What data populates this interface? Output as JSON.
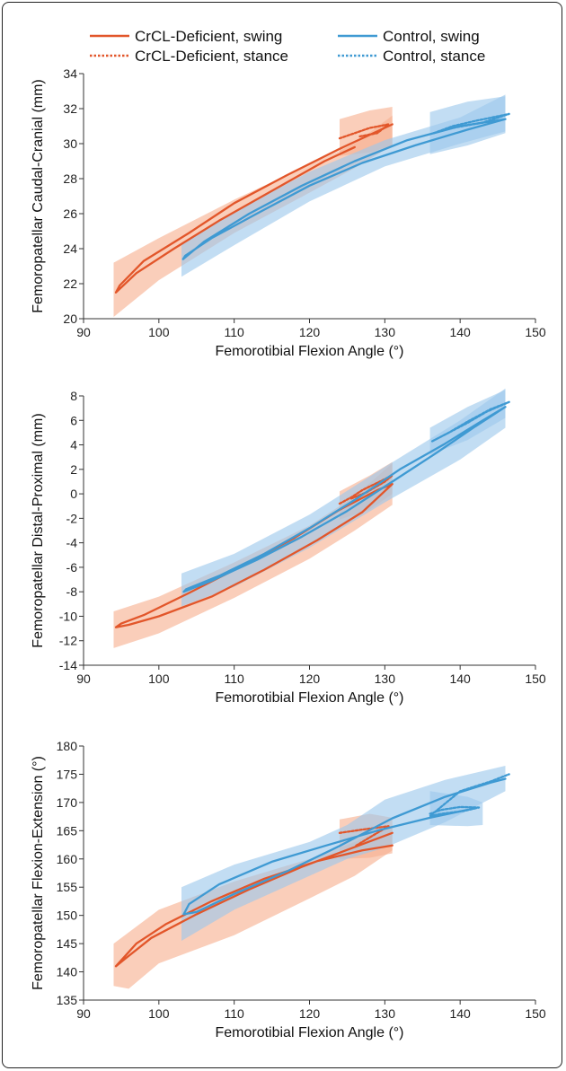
{
  "legend": {
    "items": [
      {
        "label": "CrCL-Deficient, swing",
        "color": "#E2562A",
        "dash": false
      },
      {
        "label": "CrCL-Deficient, stance",
        "color": "#E2562A",
        "dash": true
      },
      {
        "label": "Control, swing",
        "color": "#3F9AD3",
        "dash": false
      },
      {
        "label": "Control, stance",
        "color": "#3F9AD3",
        "dash": true
      }
    ]
  },
  "colors": {
    "crcl": "#E2562A",
    "crcl_band": "#F7B08F",
    "control": "#3F9AD3",
    "control_band": "#9DC8EC"
  },
  "chart_data": [
    {
      "type": "line",
      "title": "",
      "xlabel": "Femorotibial Flexion Angle (°)",
      "ylabel": "Femoropatellar Caudal-Cranial (mm)",
      "xlim": [
        90,
        150
      ],
      "ylim": [
        20,
        34
      ],
      "xticks": [
        90,
        100,
        110,
        120,
        130,
        140,
        150
      ],
      "yticks": [
        20,
        22,
        24,
        26,
        28,
        30,
        32,
        34
      ],
      "series": [
        {
          "name": "CrCL-Deficient, swing",
          "x": [
            126,
            122,
            115,
            108,
            102,
            97,
            94.3,
            94.8,
            98,
            104,
            110,
            117,
            124,
            131
          ],
          "y": [
            29.8,
            29.0,
            27.3,
            25.6,
            24.0,
            22.6,
            21.5,
            21.9,
            23.3,
            24.9,
            26.6,
            28.2,
            29.7,
            31.1
          ]
        },
        {
          "name": "CrCL-Deficient, stance",
          "x": [
            124,
            126,
            128,
            130.5,
            129,
            126.5
          ],
          "y": [
            30.3,
            30.6,
            30.9,
            31.1,
            30.6,
            30.4
          ]
        },
        {
          "name": "Control, swing",
          "x": [
            146,
            140,
            133,
            126,
            119,
            112,
            106,
            103.2,
            103.5,
            107,
            113,
            120,
            127,
            134,
            141,
            146
          ],
          "y": [
            31.4,
            31.0,
            30.2,
            29.0,
            27.6,
            26.0,
            24.4,
            23.4,
            23.6,
            24.6,
            26.0,
            27.6,
            28.9,
            29.9,
            30.8,
            31.4
          ]
        },
        {
          "name": "Control, stance",
          "x": [
            136.5,
            139,
            142,
            146.5,
            143,
            139,
            136.5
          ],
          "y": [
            30.6,
            31.0,
            31.3,
            31.7,
            31.2,
            30.9,
            30.6
          ]
        }
      ]
    },
    {
      "type": "line",
      "title": "",
      "xlabel": "Femorotibial Flexion Angle (°)",
      "ylabel": "Femoropatellar Distal-Proximal (mm)",
      "xlim": [
        90,
        150
      ],
      "ylim": [
        -14,
        8
      ],
      "xticks": [
        90,
        100,
        110,
        120,
        130,
        140,
        150
      ],
      "yticks": [
        -14,
        -12,
        -10,
        -8,
        -6,
        -4,
        -2,
        0,
        2,
        4,
        6,
        8
      ],
      "series": [
        {
          "name": "CrCL-Deficient, swing",
          "x": [
            131,
            127,
            121,
            114,
            107,
            100,
            96,
            94.3,
            95,
            98,
            104,
            111,
            118,
            124,
            129,
            131
          ],
          "y": [
            0.8,
            -1.5,
            -3.8,
            -6.2,
            -8.4,
            -10.0,
            -10.7,
            -10.9,
            -10.6,
            -9.9,
            -8.1,
            -5.9,
            -3.6,
            -1.3,
            0.3,
            0.8
          ]
        },
        {
          "name": "CrCL-Deficient, stance",
          "x": [
            124,
            125.5,
            127,
            129,
            131,
            130,
            127.5,
            125.5
          ],
          "y": [
            -0.8,
            -0.3,
            0.3,
            0.9,
            1.5,
            1.0,
            0.1,
            -0.4
          ]
        },
        {
          "name": "Control, swing",
          "x": [
            146,
            142,
            137,
            131,
            125,
            119,
            113,
            107,
            103.3,
            103.6,
            108,
            114,
            120,
            126,
            132,
            138,
            143,
            146
          ],
          "y": [
            7.1,
            5.5,
            3.4,
            1.0,
            -1.4,
            -3.5,
            -5.4,
            -7.1,
            -8.0,
            -7.8,
            -6.7,
            -4.9,
            -2.8,
            -0.5,
            2.0,
            4.1,
            6.0,
            7.1
          ]
        },
        {
          "name": "Control, stance",
          "x": [
            136.3,
            138.5,
            141,
            143.5,
            146.5,
            144,
            141,
            138.5,
            136.3
          ],
          "y": [
            4.3,
            5.0,
            5.8,
            6.7,
            7.5,
            6.9,
            5.9,
            5.0,
            4.3
          ]
        }
      ]
    },
    {
      "type": "line",
      "title": "",
      "xlabel": "Femorotibial Flexion Angle (°)",
      "ylabel": "Femoropatellar Flexion-Extension (°)",
      "xlim": [
        90,
        150
      ],
      "ylim": [
        135,
        180
      ],
      "xticks": [
        90,
        100,
        110,
        120,
        130,
        140,
        150
      ],
      "yticks": [
        135,
        140,
        145,
        150,
        155,
        160,
        165,
        170,
        175,
        180
      ],
      "series": [
        {
          "name": "CrCL-Deficient, swing",
          "x": [
            131,
            127,
            121,
            114,
            107,
            101,
            97,
            94.3,
            95.5,
            99,
            105,
            112,
            119,
            125,
            131
          ],
          "y": [
            162.4,
            161.5,
            159.6,
            156.5,
            152.5,
            148.5,
            145.0,
            141.0,
            142.3,
            146.0,
            150.2,
            154.6,
            158.6,
            161.6,
            164.6
          ]
        },
        {
          "name": "CrCL-Deficient, stance",
          "x": [
            124,
            127,
            130.5,
            129,
            126
          ],
          "y": [
            164.6,
            165.2,
            165.8,
            164.6,
            162.2
          ]
        },
        {
          "name": "Control, swing",
          "x": [
            142,
            136,
            129,
            122,
            115,
            108,
            104,
            103.3,
            105,
            110,
            117,
            124,
            131,
            138,
            144,
            146
          ],
          "y": [
            169.0,
            167.3,
            165.0,
            162.3,
            159.5,
            155.5,
            152.0,
            150.2,
            150.6,
            153.8,
            157.8,
            162.3,
            167.2,
            171.0,
            173.5,
            174.2
          ]
        },
        {
          "name": "Control, stance",
          "x": [
            136,
            137.5,
            140,
            142.5,
            140.5,
            137.5,
            136,
            140,
            144,
            146.5
          ],
          "y": [
            168.0,
            168.7,
            169.2,
            169.1,
            168.5,
            168.0,
            167.6,
            172.0,
            173.7,
            175.0
          ]
        }
      ]
    }
  ]
}
